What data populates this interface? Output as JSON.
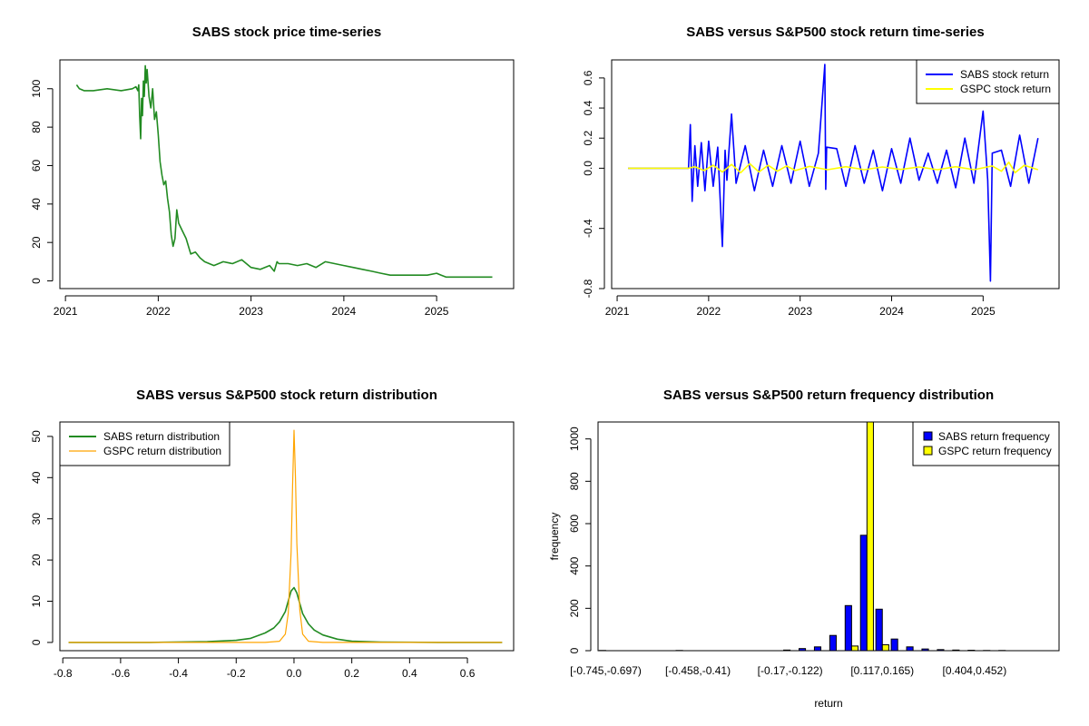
{
  "chart_data": [
    {
      "type": "line",
      "title": "SABS stock price time-series",
      "xlabel": "",
      "ylabel": "",
      "x_ticks": [
        "2021",
        "2022",
        "2023",
        "2024",
        "2025"
      ],
      "x_tick_values": [
        2021.0,
        2022.0,
        2023.0,
        2024.0,
        2025.0
      ],
      "y_ticks": [
        "0",
        "20",
        "40",
        "60",
        "80",
        "100"
      ],
      "y_tick_values": [
        0,
        20,
        40,
        60,
        80,
        100
      ],
      "xlim": [
        2020.94,
        2025.83
      ],
      "ylim": [
        -4,
        115
      ],
      "grid": false,
      "series": [
        {
          "color": "#228B22",
          "x": [
            2021.12,
            2021.15,
            2021.2,
            2021.3,
            2021.45,
            2021.6,
            2021.72,
            2021.76,
            2021.78,
            2021.79,
            2021.8,
            2021.81,
            2021.82,
            2021.83,
            2021.84,
            2021.85,
            2021.86,
            2021.87,
            2021.88,
            2021.9,
            2021.92,
            2021.94,
            2021.96,
            2021.98,
            2022.0,
            2022.02,
            2022.04,
            2022.06,
            2022.08,
            2022.1,
            2022.12,
            2022.14,
            2022.16,
            2022.18,
            2022.2,
            2022.22,
            2022.26,
            2022.3,
            2022.35,
            2022.4,
            2022.45,
            2022.5,
            2022.6,
            2022.7,
            2022.8,
            2022.9,
            2023.0,
            2023.1,
            2023.2,
            2023.25,
            2023.28,
            2023.3,
            2023.4,
            2023.5,
            2023.6,
            2023.7,
            2023.8,
            2023.9,
            2024.0,
            2024.1,
            2024.2,
            2024.3,
            2024.4,
            2024.5,
            2024.6,
            2024.7,
            2024.8,
            2024.9,
            2025.0,
            2025.05,
            2025.1,
            2025.2,
            2025.3,
            2025.4,
            2025.5,
            2025.6
          ],
          "y": [
            102,
            100,
            99,
            99,
            100,
            99,
            100,
            101,
            99,
            102,
            86,
            74,
            95,
            86,
            104,
            96,
            112,
            103,
            110,
            96,
            90,
            100,
            84,
            88,
            76,
            62,
            55,
            50,
            52,
            43,
            36,
            24,
            18,
            22,
            37,
            30,
            26,
            22,
            14,
            15,
            12,
            10,
            8,
            10,
            9,
            11,
            7,
            6,
            8,
            5,
            10,
            9,
            9,
            8,
            9,
            7,
            10,
            9,
            8,
            7,
            6,
            5,
            4,
            3,
            3,
            3,
            3,
            3,
            4,
            3,
            2,
            2,
            2,
            2,
            2,
            2
          ]
        }
      ]
    },
    {
      "type": "line",
      "title": "SABS versus S&P500 stock return time-series",
      "xlabel": "",
      "ylabel": "",
      "x_ticks": [
        "2021",
        "2022",
        "2023",
        "2024",
        "2025"
      ],
      "x_tick_values": [
        2021.0,
        2022.0,
        2023.0,
        2024.0,
        2025.0
      ],
      "y_ticks": [
        "-0.8",
        "-0.4",
        "0.0",
        "0.2",
        "0.4",
        "0.6"
      ],
      "y_tick_values": [
        -0.8,
        -0.4,
        0.0,
        0.2,
        0.4,
        0.6
      ],
      "xlim": [
        2020.94,
        2025.83
      ],
      "ylim": [
        -0.8,
        0.72
      ],
      "grid": false,
      "legend": {
        "position": "top-right",
        "entries": [
          "SABS stock return",
          "GSPC stock return"
        ]
      },
      "series": [
        {
          "name": "SABS stock return",
          "color": "#0000FF",
          "x": [
            2021.12,
            2021.5,
            2021.78,
            2021.8,
            2021.82,
            2021.85,
            2021.88,
            2021.92,
            2021.96,
            2022.0,
            2022.05,
            2022.1,
            2022.15,
            2022.18,
            2022.2,
            2022.25,
            2022.3,
            2022.4,
            2022.5,
            2022.6,
            2022.7,
            2022.8,
            2022.9,
            2023.0,
            2023.1,
            2023.2,
            2023.27,
            2023.28,
            2023.29,
            2023.4,
            2023.5,
            2023.6,
            2023.7,
            2023.8,
            2023.9,
            2024.0,
            2024.1,
            2024.2,
            2024.3,
            2024.4,
            2024.5,
            2024.6,
            2024.7,
            2024.8,
            2024.9,
            2025.0,
            2025.05,
            2025.08,
            2025.1,
            2025.2,
            2025.3,
            2025.4,
            2025.5,
            2025.6
          ],
          "y": [
            0.0,
            0.0,
            0.0,
            0.29,
            -0.22,
            0.15,
            -0.12,
            0.17,
            -0.15,
            0.18,
            -0.12,
            0.14,
            -0.52,
            0.12,
            -0.08,
            0.36,
            -0.1,
            0.15,
            -0.15,
            0.12,
            -0.12,
            0.15,
            -0.1,
            0.18,
            -0.12,
            0.1,
            0.69,
            -0.14,
            0.14,
            0.13,
            -0.12,
            0.15,
            -0.1,
            0.12,
            -0.15,
            0.13,
            -0.1,
            0.2,
            -0.08,
            0.1,
            -0.1,
            0.12,
            -0.13,
            0.2,
            -0.1,
            0.38,
            -0.08,
            -0.75,
            0.1,
            0.12,
            -0.12,
            0.22,
            -0.1,
            0.2
          ]
        },
        {
          "name": "GSPC stock return",
          "color": "#FFFF00",
          "x": [
            2021.12,
            2021.5,
            2021.78,
            2021.85,
            2021.95,
            2022.05,
            2022.15,
            2022.25,
            2022.35,
            2022.45,
            2022.55,
            2022.65,
            2022.75,
            2022.85,
            2022.95,
            2023.1,
            2023.3,
            2023.5,
            2023.7,
            2023.9,
            2024.1,
            2024.3,
            2024.5,
            2024.7,
            2024.9,
            2025.1,
            2025.2,
            2025.28,
            2025.35,
            2025.45,
            2025.6
          ],
          "y": [
            0.0,
            0.0,
            0.0,
            0.01,
            -0.015,
            0.02,
            -0.025,
            0.025,
            -0.03,
            0.03,
            -0.025,
            0.02,
            -0.02,
            0.015,
            -0.015,
            0.012,
            -0.01,
            0.01,
            -0.01,
            0.008,
            -0.008,
            0.008,
            -0.01,
            0.01,
            -0.01,
            0.015,
            -0.02,
            0.04,
            -0.03,
            0.02,
            -0.01
          ]
        }
      ]
    },
    {
      "type": "line",
      "title": "SABS versus S&P500 stock return distribution",
      "xlabel": "",
      "ylabel": "",
      "x_ticks": [
        "-0.8",
        "-0.6",
        "-0.4",
        "-0.2",
        "0.0",
        "0.2",
        "0.4",
        "0.6"
      ],
      "x_tick_values": [
        -0.8,
        -0.6,
        -0.4,
        -0.2,
        0.0,
        0.2,
        0.4,
        0.6
      ],
      "y_ticks": [
        "0",
        "10",
        "20",
        "30",
        "40",
        "50"
      ],
      "y_tick_values": [
        0,
        10,
        20,
        30,
        40,
        50
      ],
      "xlim": [
        -0.81,
        0.76
      ],
      "ylim": [
        -2,
        53.5
      ],
      "grid": false,
      "legend": {
        "position": "top-left",
        "entries": [
          "SABS return distribution",
          "GSPC return distribution"
        ]
      },
      "series": [
        {
          "name": "SABS return distribution",
          "color": "#228B22",
          "x": [
            -0.78,
            -0.5,
            -0.3,
            -0.2,
            -0.15,
            -0.1,
            -0.07,
            -0.05,
            -0.03,
            -0.02,
            -0.01,
            0.0,
            0.01,
            0.02,
            0.03,
            0.05,
            0.07,
            0.1,
            0.15,
            0.2,
            0.3,
            0.5,
            0.72
          ],
          "y": [
            0.0,
            0.0,
            0.2,
            0.5,
            1.0,
            2.3,
            3.5,
            5.0,
            7.5,
            10.0,
            12.5,
            13.3,
            12.0,
            9.5,
            7.0,
            4.5,
            3.0,
            1.8,
            0.8,
            0.3,
            0.1,
            0.0,
            0.0
          ]
        },
        {
          "name": "GSPC return distribution",
          "color": "#FFA500",
          "x": [
            -0.78,
            -0.1,
            -0.05,
            -0.03,
            -0.02,
            -0.01,
            -0.005,
            0.0,
            0.005,
            0.01,
            0.02,
            0.03,
            0.05,
            0.1,
            0.72
          ],
          "y": [
            0.0,
            0.0,
            0.3,
            2.0,
            7.0,
            22.0,
            38.0,
            51.5,
            40.0,
            24.0,
            8.0,
            2.0,
            0.3,
            0.0,
            0.0
          ]
        }
      ]
    },
    {
      "type": "bar",
      "title": "SABS versus S&P500 return frequency distribution",
      "xlabel": "return",
      "ylabel": "frequency",
      "x_tick_labels": [
        "[-0.745,-0.697)",
        "[-0.458,-0.41)",
        "[-0.17,-0.122)",
        "[0.117,0.165)",
        "[0.404,0.452)"
      ],
      "x_tick_label_bins": [
        0,
        6,
        12,
        18,
        24
      ],
      "y_ticks": [
        "0",
        "200",
        "400",
        "600",
        "800",
        "1000"
      ],
      "y_tick_values": [
        0,
        200,
        400,
        600,
        800,
        1000
      ],
      "ylim": [
        0,
        1080
      ],
      "grid": false,
      "bins": 30,
      "legend": {
        "position": "top-right",
        "entries": [
          "SABS return frequency",
          "GSPC return frequency"
        ]
      },
      "series": [
        {
          "name": "SABS return frequency",
          "color": "#0000FF",
          "values": [
            1,
            0,
            0,
            0,
            0,
            1,
            0,
            0,
            0,
            0,
            0,
            0,
            3,
            10,
            18,
            72,
            213,
            545,
            196,
            55,
            18,
            8,
            5,
            3,
            2,
            1,
            1,
            0,
            0,
            0
          ]
        },
        {
          "name": "GSPC return frequency",
          "color": "#FFFF00",
          "values": [
            0,
            0,
            0,
            0,
            0,
            0,
            0,
            0,
            0,
            0,
            0,
            0,
            0,
            0,
            0,
            0,
            22,
            1130,
            28,
            0,
            0,
            0,
            0,
            0,
            0,
            0,
            0,
            0,
            0,
            0
          ]
        }
      ]
    }
  ]
}
